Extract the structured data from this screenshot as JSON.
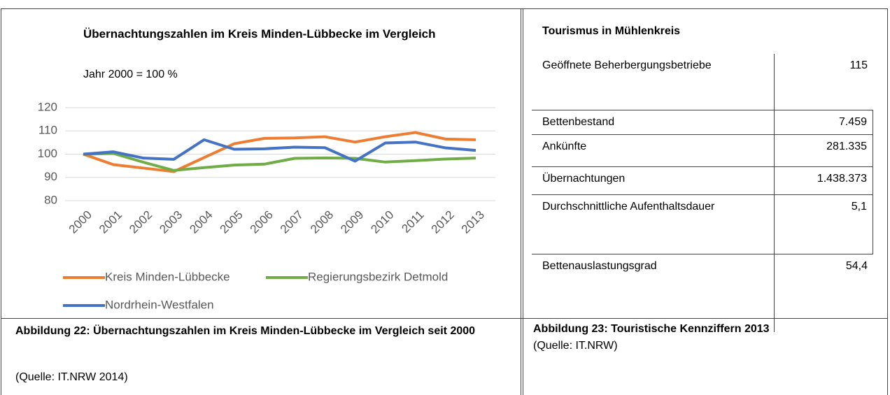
{
  "chart_data": {
    "type": "line",
    "title": "Übernachtungszahlen im Kreis Minden-Lübbecke im Vergleich",
    "subtitle": "Jahr 2000 = 100 %",
    "categories": [
      "2000",
      "2001",
      "2002",
      "2003",
      "2004",
      "2005",
      "2006",
      "2007",
      "2008",
      "2009",
      "2010",
      "2011",
      "2012",
      "2013"
    ],
    "series": [
      {
        "name": "Kreis Minden-Lübbecke",
        "color": "#ed7d31",
        "values": [
          100,
          95.5,
          94,
          92.5,
          98.5,
          104.5,
          106.8,
          107,
          107.5,
          105.2,
          107.5,
          109.3,
          106.5,
          106.2
        ]
      },
      {
        "name": "Regierungsbezirk Detmold",
        "color": "#70ad47",
        "values": [
          100,
          100.3,
          96.5,
          93,
          94.2,
          95.3,
          95.7,
          98.2,
          98.4,
          98.2,
          96.6,
          97.2,
          97.9,
          98.3
        ]
      },
      {
        "name": "Nordrhein-Westfalen",
        "color": "#4472c4",
        "values": [
          100,
          101,
          98.3,
          97.8,
          106.2,
          102.1,
          102.3,
          103,
          102.8,
          97,
          104.8,
          105.2,
          102.7,
          101.6
        ]
      }
    ],
    "ylim": [
      80,
      120
    ],
    "yticks": [
      80,
      90,
      100,
      110,
      120
    ],
    "grid": true
  },
  "table": {
    "title": "Tourismus in Mühlenkreis",
    "rows": [
      [
        "Geöffnete Beherbergungsbetriebe",
        "115"
      ],
      [
        "Bettenbestand",
        "7.459"
      ],
      [
        "Ankünfte",
        "281.335"
      ],
      [
        "Übernachtungen",
        "1.438.373"
      ],
      [
        "Durchschnittliche Aufenthaltsdauer",
        "5,1"
      ],
      [
        "Bettenauslastungsgrad",
        "54,4"
      ]
    ]
  },
  "captions": [
    {
      "title": "Abbildung 22: Übernachtungszahlen im Kreis Minden-Lübbecke im Vergleich seit 2000",
      "source": "(Quelle: IT.NRW 2014)"
    },
    {
      "title": "Abbildung 23: Touristische Kennziffern 2013",
      "source": "(Quelle: IT.NRW)"
    }
  ]
}
